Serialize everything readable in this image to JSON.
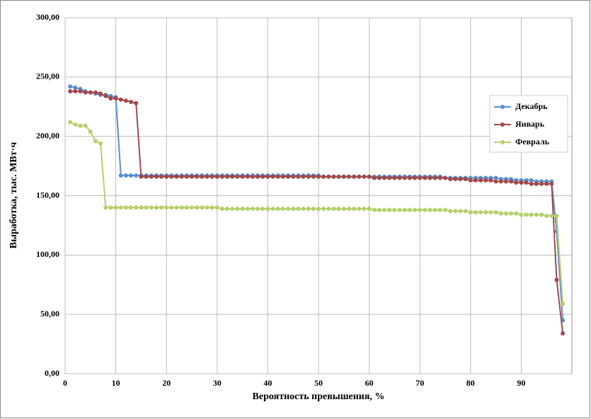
{
  "chart_data": {
    "type": "line",
    "y_label": "Выработка, тыс. МВт·ч",
    "x_label": "Вероятность превышения, %",
    "x": [
      1,
      2,
      3,
      4,
      5,
      6,
      7,
      8,
      9,
      10,
      11,
      12,
      13,
      14,
      15,
      16,
      17,
      18,
      19,
      20,
      21,
      22,
      23,
      24,
      25,
      26,
      27,
      28,
      29,
      30,
      31,
      32,
      33,
      34,
      35,
      36,
      37,
      38,
      39,
      40,
      41,
      42,
      43,
      44,
      45,
      46,
      47,
      48,
      49,
      50,
      51,
      52,
      53,
      54,
      55,
      56,
      57,
      58,
      59,
      60,
      61,
      62,
      63,
      64,
      65,
      66,
      67,
      68,
      69,
      70,
      71,
      72,
      73,
      74,
      75,
      76,
      77,
      78,
      79,
      80,
      81,
      82,
      83,
      84,
      85,
      86,
      87,
      88,
      89,
      90,
      91,
      92,
      93,
      94,
      95,
      96,
      97,
      98.2
    ],
    "series": [
      {
        "name": "Декабрь",
        "color": "#5b8fd0",
        "values": [
          242,
          241,
          240,
          238,
          237,
          236,
          235,
          235,
          234,
          233,
          167,
          167,
          167,
          167,
          167,
          167,
          167,
          167,
          167,
          167,
          167,
          167,
          167,
          167,
          167,
          167,
          167,
          167,
          167,
          167,
          167,
          167,
          167,
          167,
          167,
          167,
          167,
          167,
          167,
          167,
          167,
          167,
          167,
          167,
          167,
          167,
          167,
          167,
          167,
          167,
          166,
          166,
          166,
          166,
          166,
          166,
          166,
          166,
          166,
          166,
          166,
          166,
          166,
          166,
          166,
          166,
          166,
          166,
          166,
          166,
          166,
          166,
          166,
          166,
          165,
          165,
          165,
          165,
          165,
          165,
          165,
          165,
          165,
          165,
          165,
          164,
          164,
          164,
          163,
          163,
          163,
          163,
          162,
          162,
          162,
          162,
          120,
          45
        ]
      },
      {
        "name": "Январь",
        "color": "#a3484b",
        "values": [
          238,
          238,
          238,
          237,
          237,
          237,
          236,
          234,
          232,
          232,
          231,
          230,
          229,
          228,
          166,
          166,
          166,
          166,
          166,
          166,
          166,
          166,
          166,
          166,
          166,
          166,
          166,
          166,
          166,
          166,
          166,
          166,
          166,
          166,
          166,
          166,
          166,
          166,
          166,
          166,
          166,
          166,
          166,
          166,
          166,
          166,
          166,
          166,
          166,
          166,
          166,
          166,
          166,
          166,
          166,
          166,
          166,
          166,
          166,
          166,
          165,
          165,
          165,
          165,
          165,
          165,
          165,
          165,
          165,
          165,
          165,
          165,
          165,
          165,
          165,
          164,
          164,
          164,
          164,
          163,
          163,
          163,
          163,
          163,
          162,
          162,
          162,
          162,
          161,
          161,
          161,
          160,
          160,
          160,
          160,
          160,
          79,
          34
        ]
      },
      {
        "name": "Февраль",
        "color": "#b6d06c",
        "values": [
          212,
          210,
          209,
          209,
          204,
          196,
          194,
          140,
          140,
          140,
          140,
          140,
          140,
          140,
          140,
          140,
          140,
          140,
          140,
          140,
          140,
          140,
          140,
          140,
          140,
          140,
          140,
          140,
          140,
          140,
          139,
          139,
          139,
          139,
          139,
          139,
          139,
          139,
          139,
          139,
          139,
          139,
          139,
          139,
          139,
          139,
          139,
          139,
          139,
          139,
          139,
          139,
          139,
          139,
          139,
          139,
          139,
          139,
          139,
          139,
          138,
          138,
          138,
          138,
          138,
          138,
          138,
          138,
          138,
          138,
          138,
          138,
          138,
          138,
          138,
          137,
          137,
          137,
          137,
          136,
          136,
          136,
          136,
          136,
          136,
          135,
          135,
          135,
          135,
          134,
          134,
          134,
          134,
          134,
          133,
          133,
          133,
          59
        ]
      }
    ],
    "xlim": [
      0,
      100
    ],
    "xticks": [
      0,
      10,
      20,
      30,
      40,
      50,
      60,
      70,
      80,
      90
    ],
    "ylim": [
      0,
      300
    ],
    "yticks": [
      {
        "value": 0,
        "label": "0,00"
      },
      {
        "value": 50,
        "label": "50,00"
      },
      {
        "value": 100,
        "label": "100,00"
      },
      {
        "value": 150,
        "label": "150,00"
      },
      {
        "value": 200,
        "label": "200,00"
      },
      {
        "value": 250,
        "label": "250,00"
      },
      {
        "value": 300,
        "label": "300,00"
      }
    ],
    "grid": true,
    "legend": "right"
  }
}
